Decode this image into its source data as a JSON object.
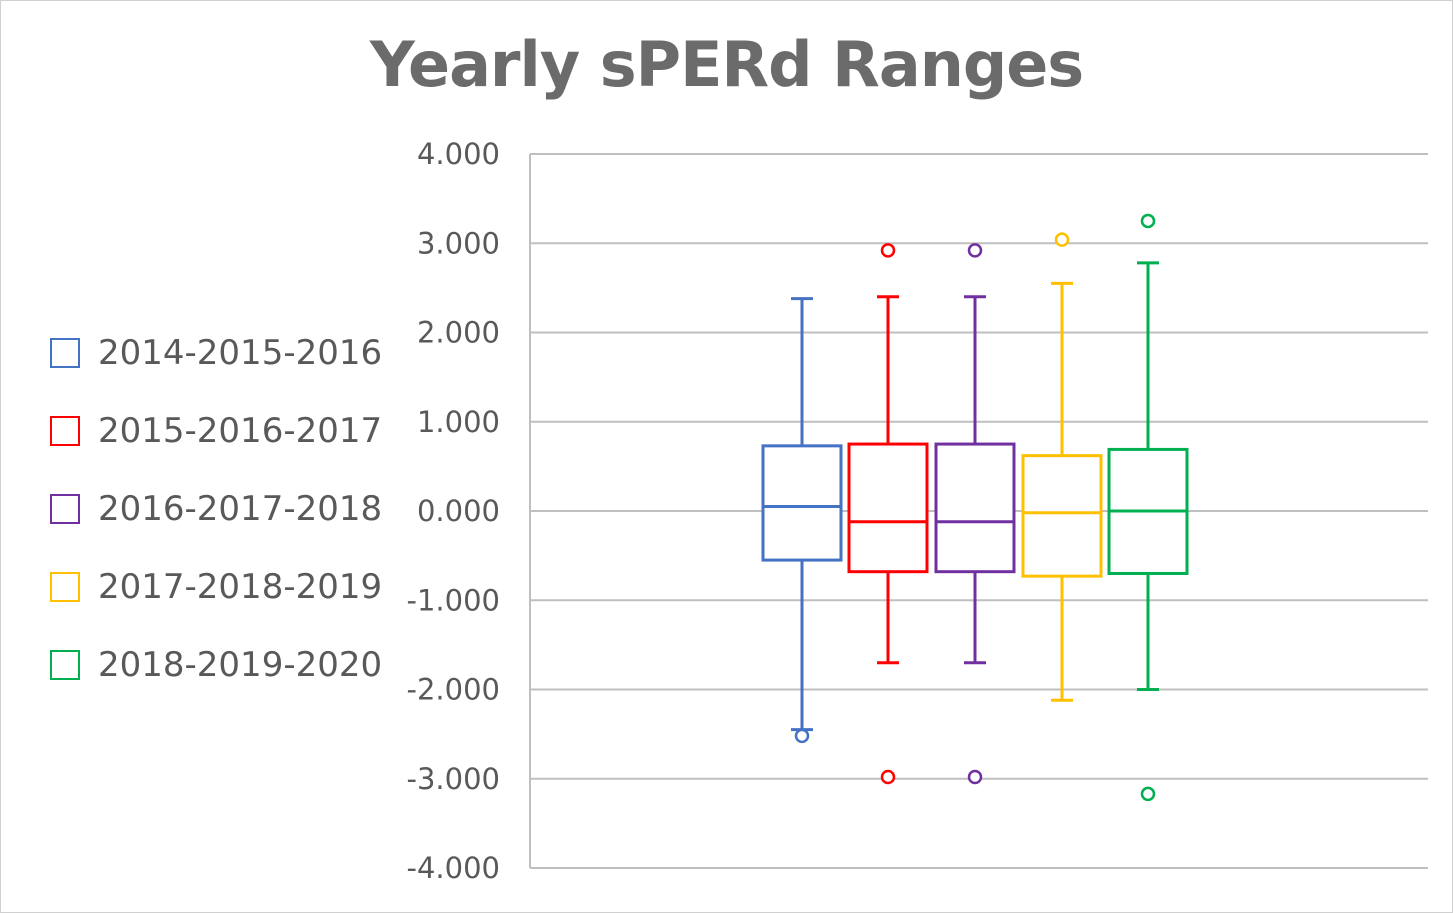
{
  "chart_data": {
    "type": "box",
    "title": "Yearly sPERd Ranges",
    "xlabel": "",
    "ylabel": "",
    "ylim": [
      -4,
      4
    ],
    "yticks": [
      "4.000",
      "3.000",
      "2.000",
      "1.000",
      "0.000",
      "-1.000",
      "-2.000",
      "-3.000",
      "-4.000"
    ],
    "grid": true,
    "legend_position": "left",
    "series": [
      {
        "name": "2014-2015-2016",
        "color": "#4472C4",
        "whisker_low": -2.45,
        "q1": -0.55,
        "median": 0.05,
        "q3": 0.73,
        "whisker_high": 2.38,
        "outliers": [
          -2.52
        ]
      },
      {
        "name": "2015-2016-2017",
        "color": "#FF0000",
        "whisker_low": -1.7,
        "q1": -0.68,
        "median": -0.12,
        "q3": 0.75,
        "whisker_high": 2.4,
        "outliers": [
          2.92,
          -2.98
        ]
      },
      {
        "name": "2016-2017-2018",
        "color": "#7030A0",
        "whisker_low": -1.7,
        "q1": -0.68,
        "median": -0.12,
        "q3": 0.75,
        "whisker_high": 2.4,
        "outliers": [
          2.92,
          -2.98
        ]
      },
      {
        "name": "2017-2018-2019",
        "color": "#FFC000",
        "whisker_low": -2.12,
        "q1": -0.73,
        "median": -0.02,
        "q3": 0.62,
        "whisker_high": 2.55,
        "outliers": [
          3.04
        ]
      },
      {
        "name": "2018-2019-2020",
        "color": "#00B050",
        "whisker_low": -2.0,
        "q1": -0.7,
        "median": 0.0,
        "q3": 0.69,
        "whisker_high": 2.78,
        "outliers": [
          3.25,
          -3.17
        ]
      }
    ]
  }
}
